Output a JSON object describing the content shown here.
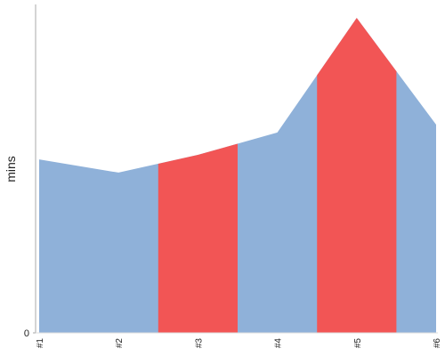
{
  "chart_data": {
    "type": "area",
    "y_label": "mins",
    "categories": [
      "#1",
      "#2",
      "#3",
      "#4",
      "#5",
      "#6"
    ],
    "values": [
      52.8,
      48.8,
      54.2,
      61,
      95.9,
      63.4
    ],
    "color": "#8fb1d9",
    "highlighted": [
      2,
      4
    ],
    "highlight_color": "#f25555",
    "ylim": [
      0,
      100
    ],
    "yticks": [
      0
    ]
  }
}
